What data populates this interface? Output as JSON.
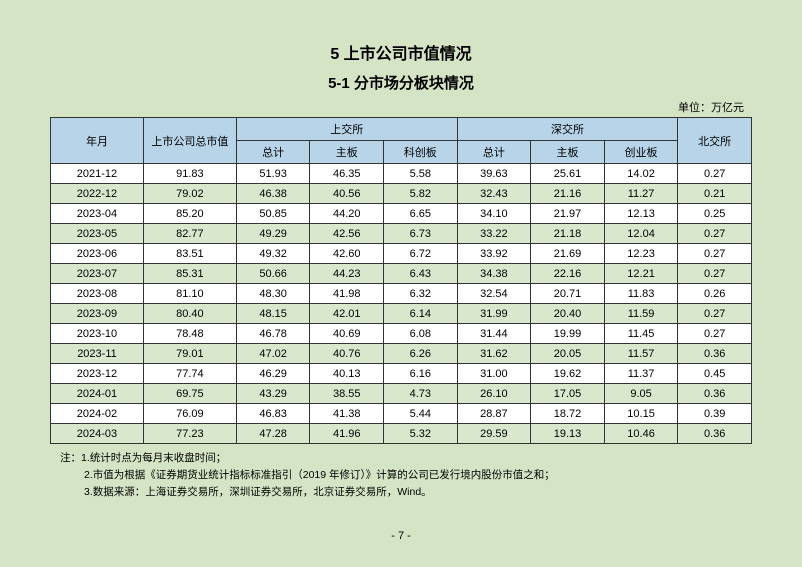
{
  "title_main": "5 上市公司市值情况",
  "title_sub": "5-1 分市场分板块情况",
  "unit_label": "单位：万亿元",
  "headers": {
    "year_month": "年月",
    "total_market_cap": "上市公司总市值",
    "sse": "上交所",
    "szse": "深交所",
    "bse": "北交所",
    "subtotal": "总计",
    "main_board": "主板",
    "star_board": "科创板",
    "chinext": "创业板"
  },
  "rows": [
    {
      "ym": "2021-12",
      "total": "91.83",
      "sse_total": "51.93",
      "sse_main": "46.35",
      "sse_star": "5.58",
      "szse_total": "39.63",
      "szse_main": "25.61",
      "szse_chinext": "14.02",
      "bse": "0.27"
    },
    {
      "ym": "2022-12",
      "total": "79.02",
      "sse_total": "46.38",
      "sse_main": "40.56",
      "sse_star": "5.82",
      "szse_total": "32.43",
      "szse_main": "21.16",
      "szse_chinext": "11.27",
      "bse": "0.21"
    },
    {
      "ym": "2023-04",
      "total": "85.20",
      "sse_total": "50.85",
      "sse_main": "44.20",
      "sse_star": "6.65",
      "szse_total": "34.10",
      "szse_main": "21.97",
      "szse_chinext": "12.13",
      "bse": "0.25"
    },
    {
      "ym": "2023-05",
      "total": "82.77",
      "sse_total": "49.29",
      "sse_main": "42.56",
      "sse_star": "6.73",
      "szse_total": "33.22",
      "szse_main": "21.18",
      "szse_chinext": "12.04",
      "bse": "0.27"
    },
    {
      "ym": "2023-06",
      "total": "83.51",
      "sse_total": "49.32",
      "sse_main": "42.60",
      "sse_star": "6.72",
      "szse_total": "33.92",
      "szse_main": "21.69",
      "szse_chinext": "12.23",
      "bse": "0.27"
    },
    {
      "ym": "2023-07",
      "total": "85.31",
      "sse_total": "50.66",
      "sse_main": "44.23",
      "sse_star": "6.43",
      "szse_total": "34.38",
      "szse_main": "22.16",
      "szse_chinext": "12.21",
      "bse": "0.27"
    },
    {
      "ym": "2023-08",
      "total": "81.10",
      "sse_total": "48.30",
      "sse_main": "41.98",
      "sse_star": "6.32",
      "szse_total": "32.54",
      "szse_main": "20.71",
      "szse_chinext": "11.83",
      "bse": "0.26"
    },
    {
      "ym": "2023-09",
      "total": "80.40",
      "sse_total": "48.15",
      "sse_main": "42.01",
      "sse_star": "6.14",
      "szse_total": "31.99",
      "szse_main": "20.40",
      "szse_chinext": "11.59",
      "bse": "0.27"
    },
    {
      "ym": "2023-10",
      "total": "78.48",
      "sse_total": "46.78",
      "sse_main": "40.69",
      "sse_star": "6.08",
      "szse_total": "31.44",
      "szse_main": "19.99",
      "szse_chinext": "11.45",
      "bse": "0.27"
    },
    {
      "ym": "2023-11",
      "total": "79.01",
      "sse_total": "47.02",
      "sse_main": "40.76",
      "sse_star": "6.26",
      "szse_total": "31.62",
      "szse_main": "20.05",
      "szse_chinext": "11.57",
      "bse": "0.36"
    },
    {
      "ym": "2023-12",
      "total": "77.74",
      "sse_total": "46.29",
      "sse_main": "40.13",
      "sse_star": "6.16",
      "szse_total": "31.00",
      "szse_main": "19.62",
      "szse_chinext": "11.37",
      "bse": "0.45"
    },
    {
      "ym": "2024-01",
      "total": "69.75",
      "sse_total": "43.29",
      "sse_main": "38.55",
      "sse_star": "4.73",
      "szse_total": "26.10",
      "szse_main": "17.05",
      "szse_chinext": "9.05",
      "bse": "0.36"
    },
    {
      "ym": "2024-02",
      "total": "76.09",
      "sse_total": "46.83",
      "sse_main": "41.38",
      "sse_star": "5.44",
      "szse_total": "28.87",
      "szse_main": "18.72",
      "szse_chinext": "10.15",
      "bse": "0.39"
    },
    {
      "ym": "2024-03",
      "total": "77.23",
      "sse_total": "47.28",
      "sse_main": "41.96",
      "sse_star": "5.32",
      "szse_total": "29.59",
      "szse_main": "19.13",
      "szse_chinext": "10.46",
      "bse": "0.36"
    }
  ],
  "notes": {
    "prefix": "注：",
    "n1": "1.统计时点为每月末收盘时间；",
    "n2": "2.市值为根据《证券期货业统计指标标准指引（2019 年修订）》计算的公司已发行境内股份市值之和；",
    "n3": "3.数据来源：上海证券交易所，深圳证券交易所，北京证券交易所，Wind。"
  },
  "page_number": "- 7 -",
  "colors": {
    "page_bg": "#d4e4c4",
    "header_bg": "#b8d4e8",
    "row_odd_bg": "#ffffff",
    "row_even_bg": "#d9e8cc",
    "border": "#333333"
  }
}
